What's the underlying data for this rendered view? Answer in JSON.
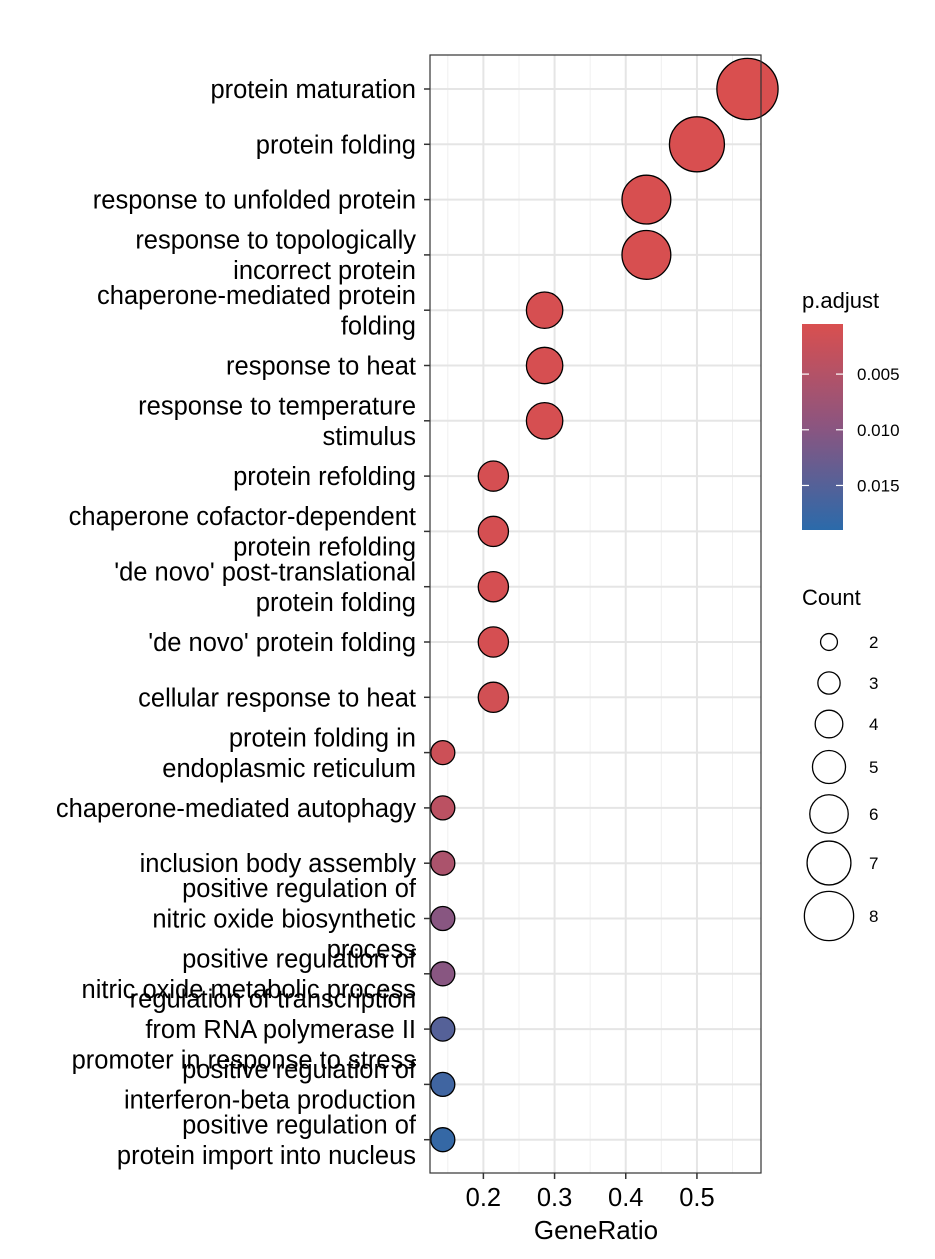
{
  "chart_data": {
    "type": "scatter",
    "xlabel": "GeneRatio",
    "xlim": [
      0.125,
      0.59
    ],
    "x_ticks": [
      "0.2",
      "0.3",
      "0.4",
      "0.5"
    ],
    "x_tick_values": [
      0.2,
      0.3,
      0.4,
      0.5
    ],
    "grid": true,
    "legend_position": "right",
    "color_legend": {
      "title": "p.adjust",
      "range": [
        0.0005,
        0.019
      ],
      "low_color": "#d94f4f",
      "high_color": "#2b6aaa",
      "ticks": [
        "0.005",
        "0.010",
        "0.015"
      ],
      "tick_values": [
        0.005,
        0.01,
        0.015
      ]
    },
    "size_legend": {
      "title": "Count",
      "values": [
        2,
        3,
        4,
        5,
        6,
        7,
        8
      ],
      "labels": [
        "2",
        "3",
        "4",
        "5",
        "6",
        "7",
        "8"
      ]
    },
    "points": [
      {
        "lines": [
          "protein maturation"
        ],
        "x": 0.571,
        "count": 8,
        "padj": 0.0005
      },
      {
        "lines": [
          "protein folding"
        ],
        "x": 0.5,
        "count": 7,
        "padj": 0.0006
      },
      {
        "lines": [
          "response to unfolded protein"
        ],
        "x": 0.429,
        "count": 6,
        "padj": 0.0007
      },
      {
        "lines": [
          "response to topologically",
          "incorrect protein"
        ],
        "x": 0.429,
        "count": 6,
        "padj": 0.0007
      },
      {
        "lines": [
          "chaperone-mediated protein",
          "folding"
        ],
        "x": 0.286,
        "count": 4,
        "padj": 0.0008
      },
      {
        "lines": [
          "response to heat"
        ],
        "x": 0.286,
        "count": 4,
        "padj": 0.0008
      },
      {
        "lines": [
          "response to temperature",
          "stimulus"
        ],
        "x": 0.286,
        "count": 4,
        "padj": 0.0009
      },
      {
        "lines": [
          "protein refolding"
        ],
        "x": 0.214,
        "count": 3,
        "padj": 0.001
      },
      {
        "lines": [
          "chaperone cofactor-dependent",
          "protein refolding"
        ],
        "x": 0.214,
        "count": 3,
        "padj": 0.001
      },
      {
        "lines": [
          "'de novo' post-translational",
          "protein folding"
        ],
        "x": 0.214,
        "count": 3,
        "padj": 0.001
      },
      {
        "lines": [
          "'de novo' protein folding"
        ],
        "x": 0.214,
        "count": 3,
        "padj": 0.001
      },
      {
        "lines": [
          "cellular response to heat"
        ],
        "x": 0.214,
        "count": 3,
        "padj": 0.0015
      },
      {
        "lines": [
          "protein folding in",
          "endoplasmic reticulum"
        ],
        "x": 0.143,
        "count": 2,
        "padj": 0.002
      },
      {
        "lines": [
          "chaperone-mediated autophagy"
        ],
        "x": 0.143,
        "count": 2,
        "padj": 0.004
      },
      {
        "lines": [
          "inclusion body assembly"
        ],
        "x": 0.143,
        "count": 2,
        "padj": 0.006
      },
      {
        "lines": [
          "positive regulation of",
          "nitric oxide biosynthetic",
          "process"
        ],
        "x": 0.143,
        "count": 2,
        "padj": 0.01
      },
      {
        "lines": [
          "positive regulation of",
          "nitric oxide metabolic process"
        ],
        "x": 0.143,
        "count": 2,
        "padj": 0.01
      },
      {
        "lines": [
          "regulation of transcription",
          "from RNA polymerase II",
          "promoter in response to stress"
        ],
        "x": 0.143,
        "count": 2,
        "padj": 0.015
      },
      {
        "lines": [
          "positive regulation of",
          "interferon-beta production"
        ],
        "x": 0.143,
        "count": 2,
        "padj": 0.017
      },
      {
        "lines": [
          "positive regulation of",
          "protein import into nucleus"
        ],
        "x": 0.143,
        "count": 2,
        "padj": 0.018
      }
    ]
  }
}
